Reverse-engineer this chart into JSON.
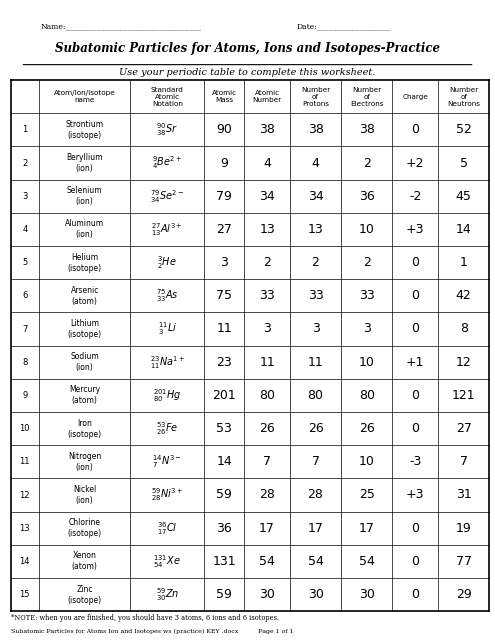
{
  "title": "Subatomic Particles for Atoms, Ions and Isotopes-Practice",
  "subtitle": "Use your periodic table to complete this worksheet.",
  "name_label": "Name:___________________________________",
  "date_label": "Date:___________________",
  "col_headers": [
    "",
    "Atom/Ion/Isotope\nname",
    "Standard\nAtomic\nNotation",
    "Atomic\nMass",
    "Atomic\nNumber",
    "Number\nof\nProtons",
    "Number\nof\nElectrons",
    "Charge",
    "Number\nof\nNeutrons"
  ],
  "rows": [
    {
      "num": "1",
      "name": "Strontium\n(isotope)",
      "notation": "$^{90}_{38}Sr$",
      "mass": "90",
      "an": "38",
      "protons": "38",
      "electrons": "38",
      "charge": "0",
      "neutrons": "52"
    },
    {
      "num": "2",
      "name": "Beryllium\n(ion)",
      "notation": "$^{9}_{4}Be^{2+}$",
      "mass": "9",
      "an": "4",
      "protons": "4",
      "electrons": "2",
      "charge": "+2",
      "neutrons": "5"
    },
    {
      "num": "3",
      "name": "Selenium\n(ion)",
      "notation": "$^{79}_{34}Se^{2-}$",
      "mass": "79",
      "an": "34",
      "protons": "34",
      "electrons": "36",
      "charge": "-2",
      "neutrons": "45"
    },
    {
      "num": "4",
      "name": "Aluminum\n(ion)",
      "notation": "$^{27}_{13}Al^{3+}$",
      "mass": "27",
      "an": "13",
      "protons": "13",
      "electrons": "10",
      "charge": "+3",
      "neutrons": "14"
    },
    {
      "num": "5",
      "name": "Helium\n(isotope)",
      "notation": "$^{3}_{2}He$",
      "mass": "3",
      "an": "2",
      "protons": "2",
      "electrons": "2",
      "charge": "0",
      "neutrons": "1"
    },
    {
      "num": "6",
      "name": "Arsenic\n(atom)",
      "notation": "$^{75}_{33}As$",
      "mass": "75",
      "an": "33",
      "protons": "33",
      "electrons": "33",
      "charge": "0",
      "neutrons": "42"
    },
    {
      "num": "7",
      "name": "Lithium\n(isotope)",
      "notation": "$^{11}_{3}Li$",
      "mass": "11",
      "an": "3",
      "protons": "3",
      "electrons": "3",
      "charge": "0",
      "neutrons": "8"
    },
    {
      "num": "8",
      "name": "Sodium\n(ion)",
      "notation": "$^{23}_{11}Na^{1+}$",
      "mass": "23",
      "an": "11",
      "protons": "11",
      "electrons": "10",
      "charge": "+1",
      "neutrons": "12"
    },
    {
      "num": "9",
      "name": "Mercury\n(atom)",
      "notation": "$^{201}_{80}Hg$",
      "mass": "201",
      "an": "80",
      "protons": "80",
      "electrons": "80",
      "charge": "0",
      "neutrons": "121"
    },
    {
      "num": "10",
      "name": "Iron\n(isotope)",
      "notation": "$^{53}_{26}Fe$",
      "mass": "53",
      "an": "26",
      "protons": "26",
      "electrons": "26",
      "charge": "0",
      "neutrons": "27"
    },
    {
      "num": "11",
      "name": "Nitrogen\n(ion)",
      "notation": "$^{14}_{7}N^{3-}$",
      "mass": "14",
      "an": "7",
      "protons": "7",
      "electrons": "10",
      "charge": "-3",
      "neutrons": "7"
    },
    {
      "num": "12",
      "name": "Nickel\n(ion)",
      "notation": "$^{59}_{28}Ni^{3+}$",
      "mass": "59",
      "an": "28",
      "protons": "28",
      "electrons": "25",
      "charge": "+3",
      "neutrons": "31"
    },
    {
      "num": "13",
      "name": "Chlorine\n(isotope)",
      "notation": "$^{36}_{17}Cl$",
      "mass": "36",
      "an": "17",
      "protons": "17",
      "electrons": "17",
      "charge": "0",
      "neutrons": "19"
    },
    {
      "num": "14",
      "name": "Xenon\n(atom)",
      "notation": "$^{131}_{54}Xe$",
      "mass": "131",
      "an": "54",
      "protons": "54",
      "electrons": "54",
      "charge": "0",
      "neutrons": "77"
    },
    {
      "num": "15",
      "name": "Zinc\n(isotope)",
      "notation": "$^{59}_{30}Zn$",
      "mass": "59",
      "an": "30",
      "protons": "30",
      "electrons": "30",
      "charge": "0",
      "neutrons": "29"
    }
  ],
  "footer_note": "*NOTE: when you are finished, you should have 3 atoms, 6 ions and 6 isotopes.",
  "footer_doc": "Subatomic Particles for Atoms Ion and Isotopes ws (practice) KEY .docx          Page 1 of 1",
  "bg_color": "#ffffff",
  "text_color": "#000000",
  "header_bg": "#ffffff",
  "line_color": "#000000"
}
